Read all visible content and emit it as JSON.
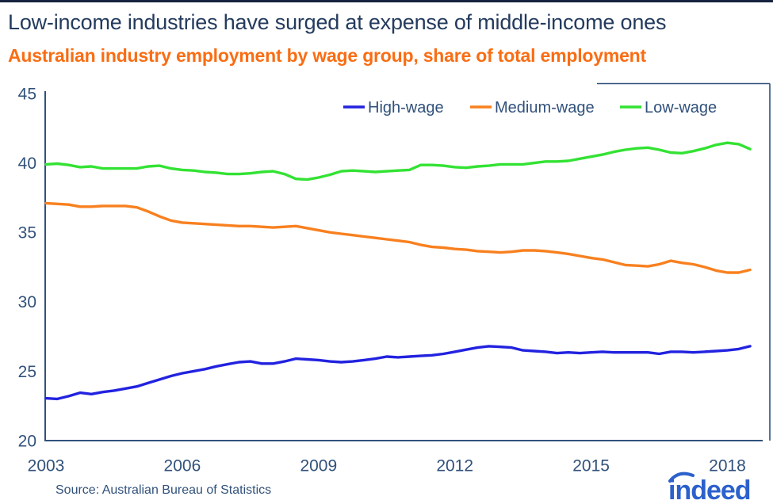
{
  "header": {
    "title": "Low-income industries have surged at expense of middle-income ones",
    "subtitle": "Australian industry employment by wage group, share of total employment"
  },
  "footer": {
    "source": "Source: Australian Bureau of Statistics",
    "logo_text": "indeed"
  },
  "colors": {
    "title_navy": "#243b5e",
    "subtitle_orange": "#f96d13",
    "axis_navy": "#31517b",
    "high_wage_blue": "#2222e0",
    "medium_wage_orange": "#f8801f",
    "low_wage_green": "#33e233",
    "logo_blue": "#2c61cc",
    "top_border": "#16233f"
  },
  "chart_data": {
    "type": "line",
    "title": "Low-income industries have surged at expense of middle-income ones",
    "subtitle": "Australian industry employment by wage group, share of total employment",
    "xlabel": "",
    "ylabel": "",
    "ylim": [
      20,
      45
    ],
    "yticks": [
      45,
      40,
      35,
      30,
      25,
      20
    ],
    "xticks": [
      2003,
      2006,
      2009,
      2012,
      2015,
      2018
    ],
    "grid": false,
    "legend_position": "top",
    "x": [
      2003,
      2003.25,
      2003.5,
      2003.75,
      2004,
      2004.25,
      2004.5,
      2004.75,
      2005,
      2005.25,
      2005.5,
      2005.75,
      2006,
      2006.25,
      2006.5,
      2006.75,
      2007,
      2007.25,
      2007.5,
      2007.75,
      2008,
      2008.25,
      2008.5,
      2008.75,
      2009,
      2009.25,
      2009.5,
      2009.75,
      2010,
      2010.25,
      2010.5,
      2010.75,
      2011,
      2011.25,
      2011.5,
      2011.75,
      2012,
      2012.25,
      2012.5,
      2012.75,
      2013,
      2013.25,
      2013.5,
      2013.75,
      2014,
      2014.25,
      2014.5,
      2014.75,
      2015,
      2015.25,
      2015.5,
      2015.75,
      2016,
      2016.25,
      2016.5,
      2016.75,
      2017,
      2017.25,
      2017.5,
      2017.75,
      2018,
      2018.25,
      2018.5
    ],
    "series": [
      {
        "name": "High-wage",
        "color": "#2222e0",
        "values": [
          23.05,
          23.0,
          23.2,
          23.45,
          23.35,
          23.5,
          23.6,
          23.75,
          23.9,
          24.15,
          24.4,
          24.65,
          24.85,
          25.0,
          25.15,
          25.35,
          25.5,
          25.65,
          25.7,
          25.55,
          25.55,
          25.7,
          25.9,
          25.85,
          25.8,
          25.7,
          25.65,
          25.7,
          25.8,
          25.9,
          26.05,
          26.0,
          26.05,
          26.1,
          26.15,
          26.25,
          26.4,
          26.55,
          26.7,
          26.8,
          26.75,
          26.7,
          26.5,
          26.45,
          26.4,
          26.3,
          26.35,
          26.3,
          26.35,
          26.4,
          26.35,
          26.35,
          26.35,
          26.35,
          26.25,
          26.4,
          26.4,
          26.35,
          26.4,
          26.45,
          26.5,
          26.6,
          26.8
        ]
      },
      {
        "name": "Medium-wage",
        "color": "#f8801f",
        "values": [
          37.1,
          37.05,
          37.0,
          36.85,
          36.85,
          36.9,
          36.9,
          36.9,
          36.8,
          36.5,
          36.15,
          35.85,
          35.7,
          35.65,
          35.6,
          35.55,
          35.5,
          35.45,
          35.45,
          35.4,
          35.35,
          35.4,
          35.45,
          35.3,
          35.15,
          35.0,
          34.9,
          34.8,
          34.7,
          34.6,
          34.5,
          34.4,
          34.3,
          34.1,
          33.95,
          33.9,
          33.8,
          33.75,
          33.65,
          33.6,
          33.55,
          33.6,
          33.7,
          33.7,
          33.65,
          33.55,
          33.45,
          33.3,
          33.15,
          33.05,
          32.85,
          32.65,
          32.6,
          32.55,
          32.7,
          32.95,
          32.8,
          32.7,
          32.5,
          32.25,
          32.1,
          32.1,
          32.3
        ]
      },
      {
        "name": "Low-wage",
        "color": "#33e233",
        "values": [
          39.9,
          39.95,
          39.85,
          39.7,
          39.75,
          39.6,
          39.6,
          39.6,
          39.6,
          39.75,
          39.8,
          39.6,
          39.5,
          39.45,
          39.35,
          39.3,
          39.2,
          39.2,
          39.25,
          39.35,
          39.4,
          39.2,
          38.85,
          38.8,
          38.95,
          39.15,
          39.4,
          39.45,
          39.4,
          39.35,
          39.4,
          39.45,
          39.5,
          39.85,
          39.85,
          39.8,
          39.7,
          39.65,
          39.75,
          39.8,
          39.9,
          39.9,
          39.9,
          40.0,
          40.1,
          40.1,
          40.15,
          40.3,
          40.45,
          40.6,
          40.8,
          40.95,
          41.05,
          41.1,
          40.95,
          40.75,
          40.7,
          40.85,
          41.05,
          41.3,
          41.45,
          41.35,
          41.0
        ]
      }
    ]
  }
}
